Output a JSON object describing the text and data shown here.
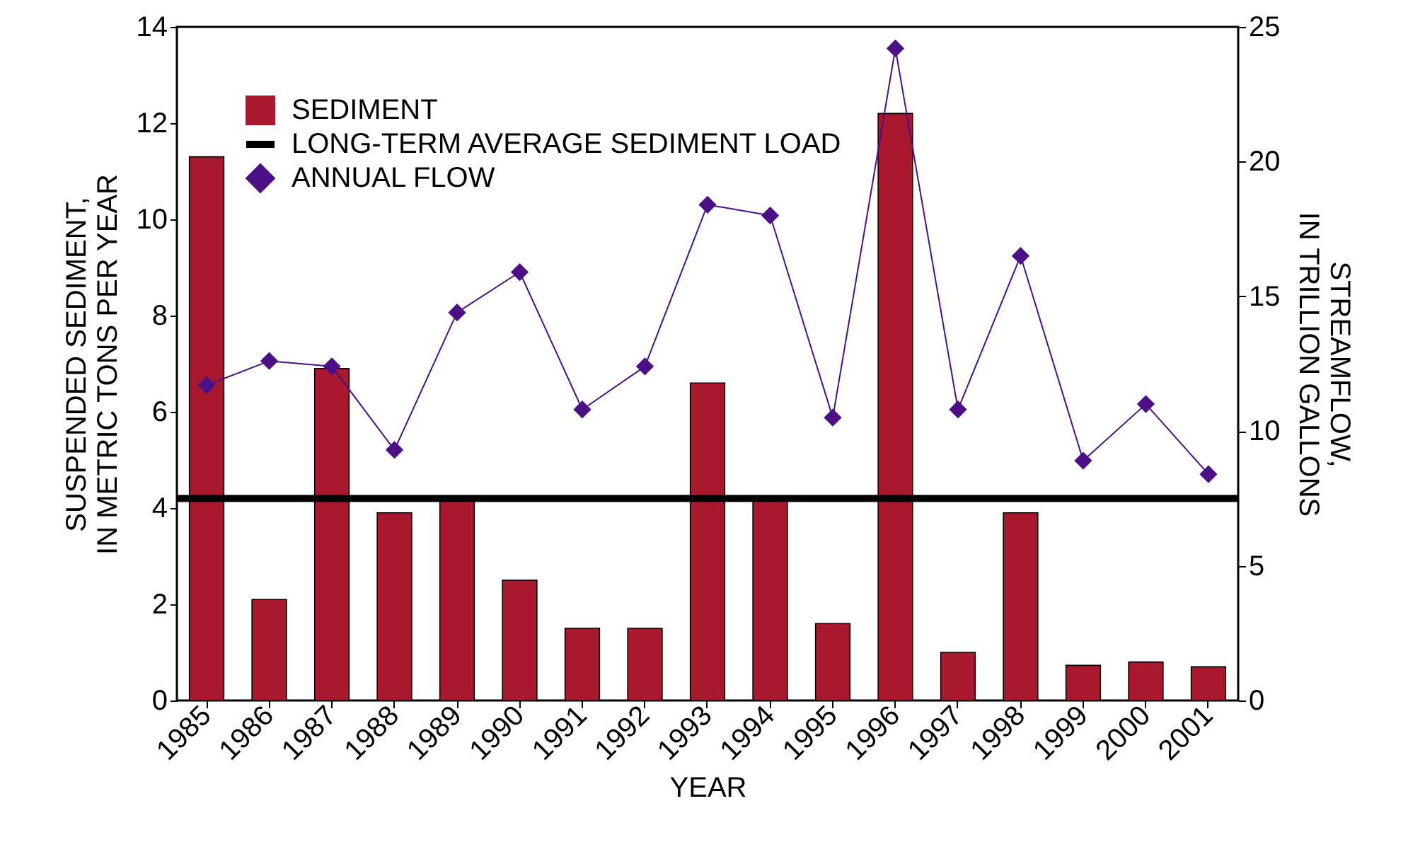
{
  "chart_data": {
    "type": "bar",
    "xlabel": "YEAR",
    "ylabel": "SUSPENDED SEDIMENT, IN METRIC TONS PER YEAR",
    "y2label": "STREAMFLOW, IN TRILLION GALLONS",
    "categories": [
      "1985",
      "1986",
      "1987",
      "1988",
      "1989",
      "1990",
      "1991",
      "1992",
      "1993",
      "1994",
      "1995",
      "1996",
      "1997",
      "1998",
      "1999",
      "2000",
      "2001"
    ],
    "series": [
      {
        "name": "SEDIMENT",
        "color": "#a8192e",
        "values": [
          11.3,
          2.1,
          6.9,
          3.9,
          4.2,
          2.5,
          1.5,
          1.5,
          6.6,
          4.2,
          1.6,
          12.2,
          1.0,
          3.9,
          0.73,
          0.8,
          0.7
        ]
      },
      {
        "name": "ANNUAL FLOW",
        "type": "line",
        "axis": "y2",
        "color": "#4b0f86",
        "marker": "diamond",
        "values": [
          11.7,
          12.6,
          12.4,
          9.3,
          14.4,
          15.9,
          10.8,
          12.4,
          18.4,
          18.0,
          10.5,
          24.2,
          10.8,
          16.5,
          8.9,
          11.0,
          8.4
        ]
      }
    ],
    "ref_lines": [
      {
        "axis": "y",
        "value": 4.2,
        "label": "LONG-TERM AVERAGE SEDIMENT LOAD",
        "color": "#000000"
      }
    ],
    "ylim": [
      0,
      14
    ],
    "yticks": [
      0,
      2,
      4,
      6,
      8,
      10,
      12,
      14
    ],
    "y2lim": [
      0,
      25
    ],
    "y2ticks": [
      0,
      5,
      10,
      15,
      20,
      25
    ],
    "grid": false,
    "legend": "top left"
  }
}
